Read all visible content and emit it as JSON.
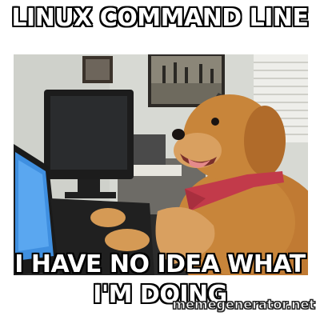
{
  "meme": {
    "top_text": "LINUX COMMAND LINE",
    "bottom_text": "I HAVE NO IDEA WHAT I'M DOING",
    "watermark": "memegenerator.net"
  },
  "image": {
    "subject": "golden retriever wearing a tie at a computer desk"
  },
  "colors": {
    "dog_fur": "#c8853a",
    "tie": "#c23a4a",
    "wall": "#d9dbd5",
    "screen": "#3f8fe0"
  }
}
